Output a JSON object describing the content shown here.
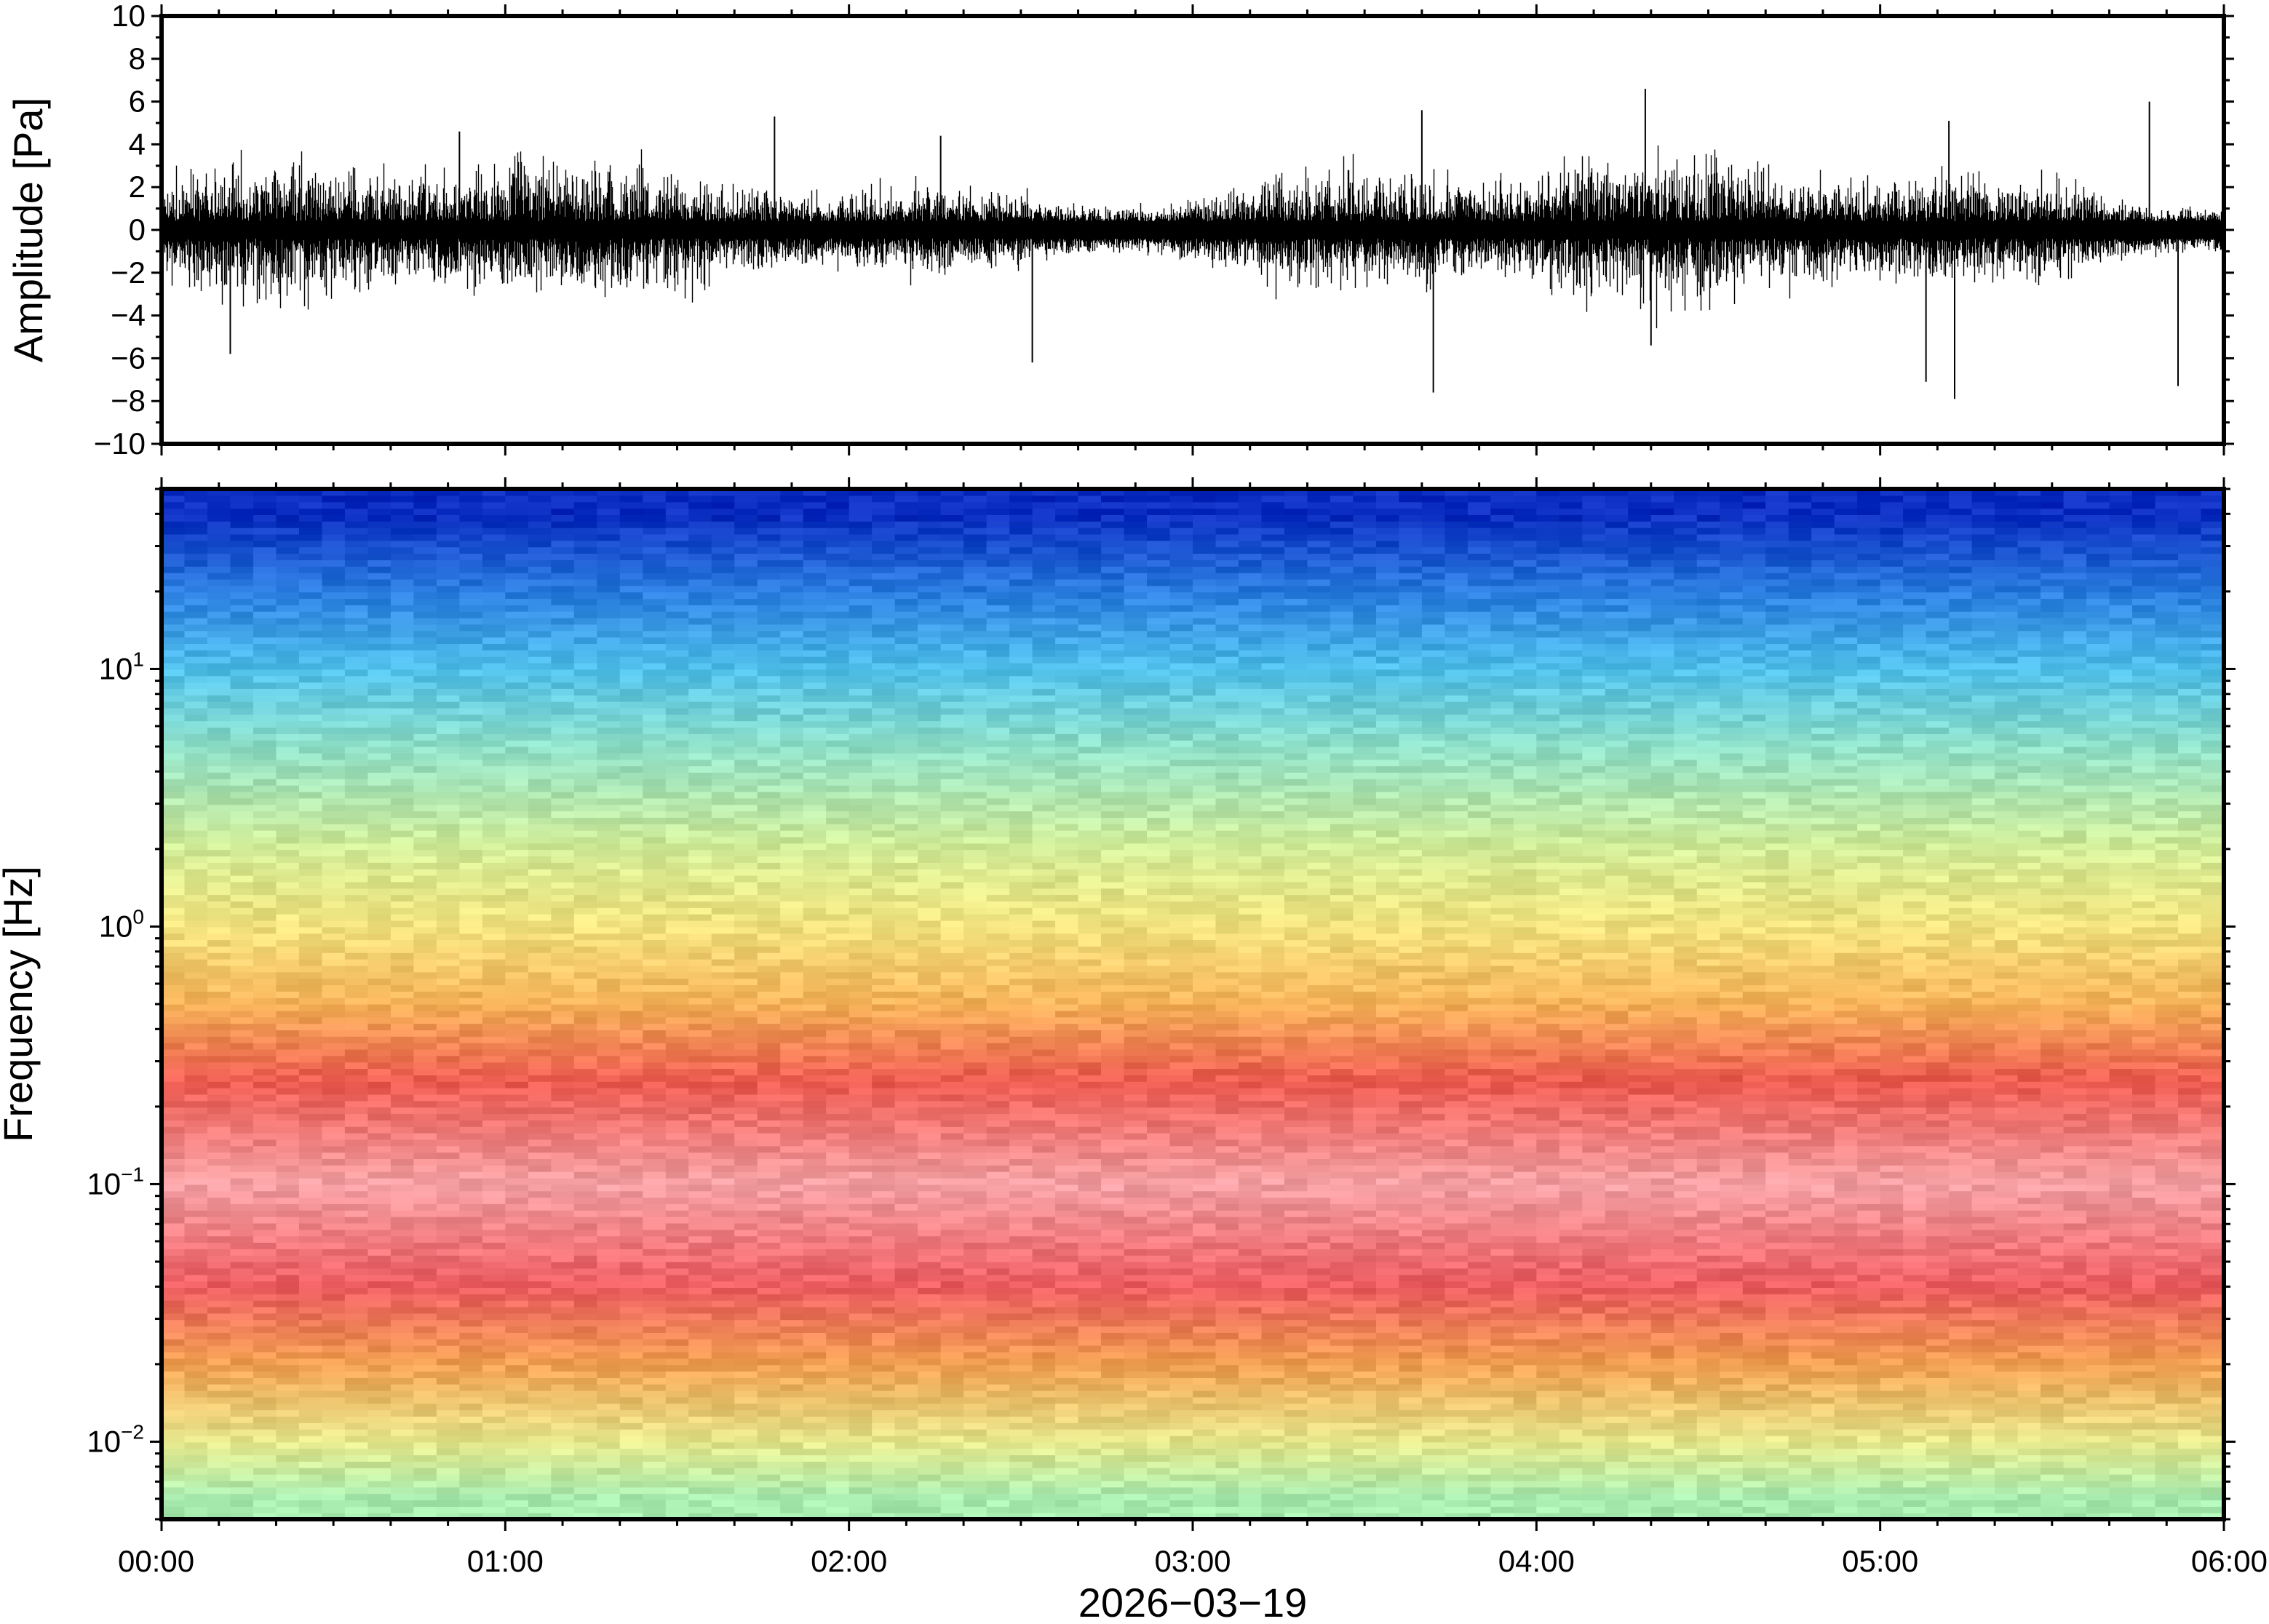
{
  "chart_data": [
    {
      "type": "line",
      "ylabel": "Amplitude [Pa]",
      "ylim": [
        -10,
        10
      ],
      "y_ticks": [
        "10",
        "8",
        "6",
        "4",
        "2",
        "0",
        "−2",
        "−4",
        "−6",
        "−8",
        "−10"
      ],
      "y_tick_values": [
        10,
        8,
        6,
        4,
        2,
        0,
        -2,
        -4,
        -6,
        -8,
        -10
      ],
      "xlim": [
        "00:00",
        "06:00"
      ],
      "grid": false,
      "series": [
        {
          "color": "#000000",
          "typical_envelope_pa": 1.8,
          "spikes": [
            {
              "time": "00:12",
              "value": -5.8
            },
            {
              "time": "00:52",
              "value": 4.6
            },
            {
              "time": "01:47",
              "value": 5.3
            },
            {
              "time": "02:16",
              "value": 4.4
            },
            {
              "time": "02:32",
              "value": -6.2
            },
            {
              "time": "03:40",
              "value": 5.6
            },
            {
              "time": "03:42",
              "value": -7.6
            },
            {
              "time": "04:19",
              "value": 6.6
            },
            {
              "time": "04:20",
              "value": -5.4
            },
            {
              "time": "05:08",
              "value": -7.1
            },
            {
              "time": "05:13",
              "value": -7.9
            },
            {
              "time": "05:12",
              "value": 5.1
            },
            {
              "time": "05:47",
              "value": 6.0
            },
            {
              "time": "05:52",
              "value": -7.3
            }
          ]
        }
      ]
    },
    {
      "type": "heatmap",
      "ylabel": "Frequency [Hz]",
      "yscale": "log",
      "ylim": [
        0.005,
        50
      ],
      "y_ticks": [
        {
          "base": "10",
          "exp": "1",
          "value": 10
        },
        {
          "base": "10",
          "exp": "0",
          "value": 1
        },
        {
          "base": "10",
          "exp": "−1",
          "value": 0.1
        },
        {
          "base": "10",
          "exp": "−2",
          "value": 0.01
        }
      ],
      "xlabel": "2026−03−19",
      "x_ticks": [
        "00:00",
        "01:00",
        "02:00",
        "03:00",
        "04:00",
        "05:00",
        "06:00"
      ],
      "xlim": [
        "00:00",
        "06:00"
      ],
      "colormap": "rainbow (blue = low power, pink = high power)",
      "colorbar": false,
      "approx_color_by_frequency": [
        {
          "freq_hz": 40,
          "color": "#0a2cc0"
        },
        {
          "freq_hz": 20,
          "color": "#2a7de0"
        },
        {
          "freq_hz": 10,
          "color": "#4fc0ea"
        },
        {
          "freq_hz": 5,
          "color": "#8fe0c8"
        },
        {
          "freq_hz": 2,
          "color": "#d2ec96"
        },
        {
          "freq_hz": 1,
          "color": "#f2e27e"
        },
        {
          "freq_hz": 0.5,
          "color": "#f6b258"
        },
        {
          "freq_hz": 0.25,
          "color": "#ec5a50"
        },
        {
          "freq_hz": 0.1,
          "color": "#f4a0a4"
        },
        {
          "freq_hz": 0.04,
          "color": "#ec5c60"
        },
        {
          "freq_hz": 0.02,
          "color": "#f0a050"
        },
        {
          "freq_hz": 0.01,
          "color": "#e6e88c"
        },
        {
          "freq_hz": 0.006,
          "color": "#a8ecb0"
        }
      ]
    }
  ]
}
